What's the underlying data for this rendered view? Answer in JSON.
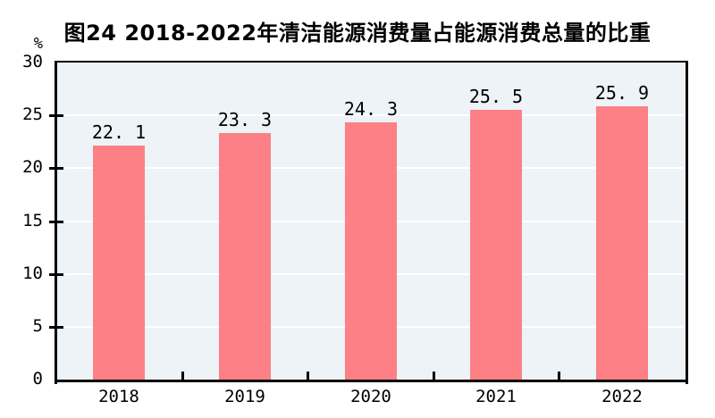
{
  "title": "图24  2018-2022年清洁能源消费量占能源消费总量的比重",
  "y_axis_unit": "%",
  "chart_data": {
    "type": "bar",
    "title": "图24  2018-2022年清洁能源消费量占能源消费总量的比重",
    "categories": [
      "2018",
      "2019",
      "2020",
      "2021",
      "2022"
    ],
    "values": [
      22.1,
      23.3,
      24.3,
      25.5,
      25.9
    ],
    "value_labels": [
      "22. 1",
      "23. 3",
      "24. 3",
      "25. 5",
      "25. 9"
    ],
    "xlabel": "",
    "ylabel": "%",
    "ylim": [
      0,
      30
    ],
    "yticks": [
      0,
      5,
      10,
      15,
      20,
      25,
      30
    ],
    "grid": true,
    "gridline_values": [
      5,
      10,
      15,
      20,
      25
    ],
    "legend": "none",
    "colors": {
      "bar": "#fc8085",
      "plot_background": "#edf3f6",
      "gridline": "#ffffff",
      "axis": "#000000",
      "text": "#000000"
    }
  }
}
